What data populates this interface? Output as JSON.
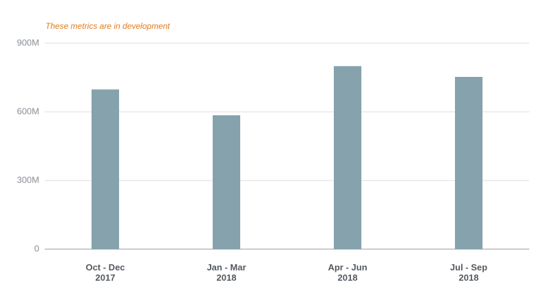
{
  "chart_data": {
    "type": "bar",
    "annotation": "These metrics are in development",
    "categories": [
      [
        "Oct - Dec",
        "2017"
      ],
      [
        "Jan - Mar",
        "2018"
      ],
      [
        "Apr - Jun",
        "2018"
      ],
      [
        "Jul - Sep",
        "2018"
      ]
    ],
    "values": [
      698000000,
      585000000,
      800000000,
      753000000
    ],
    "color": "#85a2ad",
    "ylim": [
      0,
      900000000
    ],
    "yticks": [
      0,
      {
        "value": 300000000,
        "label": "300M"
      },
      {
        "value": 600000000,
        "label": "600M"
      },
      {
        "value": 900000000,
        "label": "900M"
      }
    ],
    "grid": true
  }
}
